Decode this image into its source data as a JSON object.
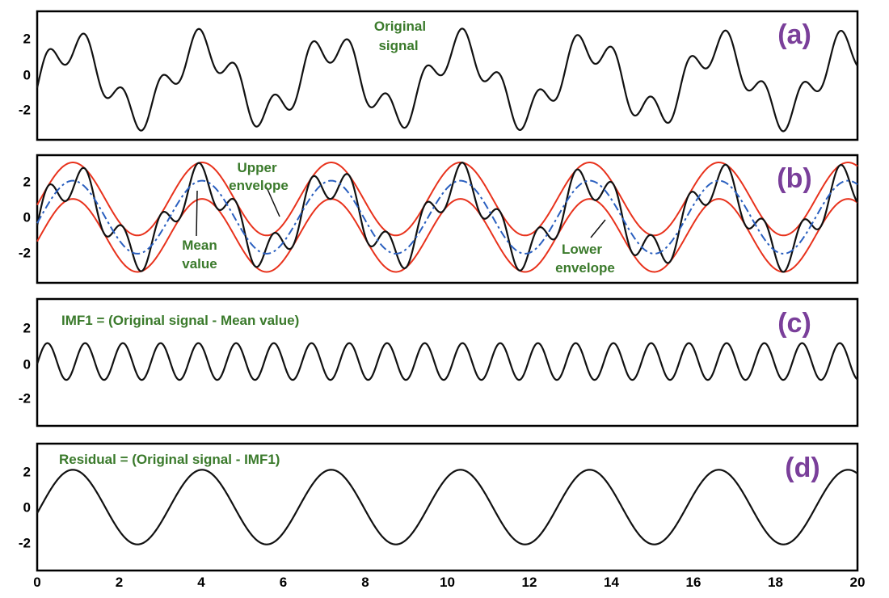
{
  "chart_data": [
    {
      "type": "line",
      "panel_label": "(a)",
      "xlim": [
        0,
        20
      ],
      "ylim": [
        -3.5,
        4
      ],
      "yticks": [
        "2",
        "0",
        "-2"
      ],
      "series": [
        {
          "kind": "original",
          "color": "#111111",
          "formula": "2*cos(2*pi*(x-0.87)/3.15) + cos(2*pi*(x-0.25)/0.92)"
        }
      ],
      "annotations": [
        {
          "lines": [
            "Original",
            "signal"
          ],
          "color": "#3a7a2b"
        }
      ]
    },
    {
      "type": "line",
      "panel_label": "(b)",
      "xlim": [
        0,
        20
      ],
      "ylim": [
        -3.6,
        3.4
      ],
      "yticks": [
        "2",
        "0",
        "-2"
      ],
      "series": [
        {
          "kind": "upper_envelope",
          "color": "#e8321c",
          "formula": "2*cos(2*pi*(x-0.87)/3.15) + 1"
        },
        {
          "kind": "lower_envelope",
          "color": "#e8321c",
          "formula": "2*cos(2*pi*(x-0.87)/3.15) - 1"
        },
        {
          "kind": "original",
          "color": "#111111",
          "formula": "2*cos(2*pi*(x-0.87)/3.15) + cos(2*pi*(x-0.25)/0.92)"
        },
        {
          "kind": "mean",
          "color": "#2a5fbf",
          "dashed": true,
          "formula": "2*cos(2*pi*(x-0.87)/3.15)"
        }
      ],
      "annotations": [
        {
          "lines": [
            "Upper",
            "envelope"
          ],
          "color": "#3a7a2b"
        },
        {
          "lines": [
            "Mean",
            "value"
          ],
          "color": "#3a7a2b"
        },
        {
          "lines": [
            "Lower",
            "envelope"
          ],
          "color": "#3a7a2b"
        }
      ]
    },
    {
      "type": "line",
      "panel_label": "(c)",
      "xlim": [
        0,
        20
      ],
      "ylim": [
        -3.5,
        3.4
      ],
      "yticks": [
        "2",
        "0",
        "-2"
      ],
      "series": [
        {
          "kind": "imf1",
          "color": "#111111",
          "formula": "cos(2*pi*(x-0.25)/0.92)"
        }
      ],
      "annotations": [
        {
          "lines": [
            "IMF1 = (Original signal - Mean value)"
          ],
          "color": "#3a7a2b"
        }
      ]
    },
    {
      "type": "line",
      "panel_label": "(d)",
      "xlim": [
        0,
        20
      ],
      "ylim": [
        -3.4,
        3.4
      ],
      "yticks": [
        "2",
        "0",
        "-2"
      ],
      "xticks": [
        "0",
        "2",
        "4",
        "6",
        "8",
        "10",
        "12",
        "14",
        "16",
        "18",
        "20"
      ],
      "series": [
        {
          "kind": "residual",
          "color": "#111111",
          "formula": "2*cos(2*pi*(x-0.87)/3.15)"
        }
      ],
      "annotations": [
        {
          "lines": [
            "Residual = (Original signal - IMF1)"
          ],
          "color": "#3a7a2b"
        }
      ]
    }
  ],
  "colors": {
    "label_purple": "#7a3f9a",
    "annotation_green": "#3a7a2b",
    "envelope_red": "#e8321c",
    "mean_blue": "#2a5fbf",
    "signal_black": "#111111"
  }
}
